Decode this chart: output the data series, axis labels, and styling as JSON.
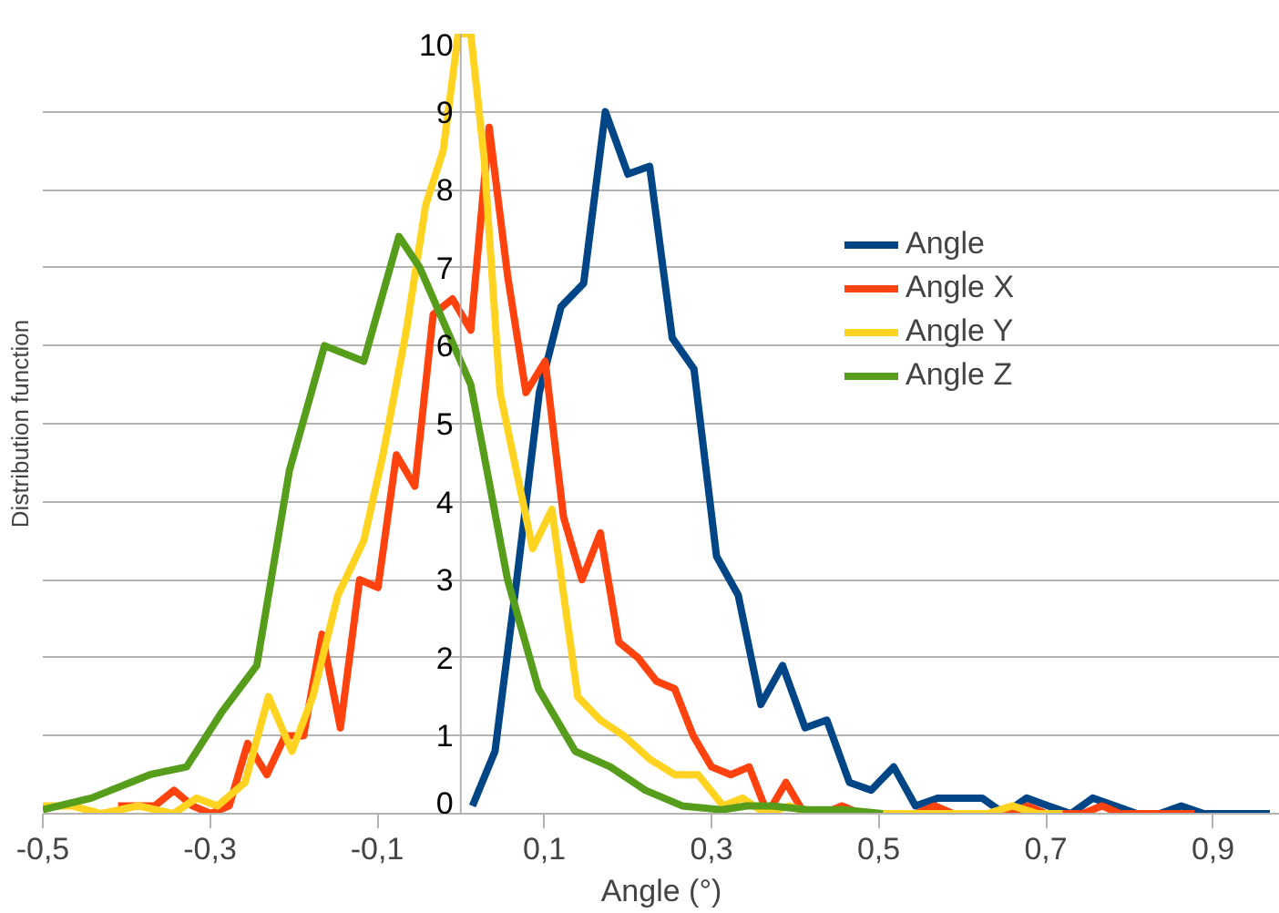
{
  "chart_data": {
    "type": "line",
    "xlabel": "Angle (°)",
    "ylabel": "Distribution function",
    "xlim": [
      -0.5,
      0.98
    ],
    "ylim": [
      0,
      10
    ],
    "xticks": [
      {
        "value": -0.5,
        "label": "-0,5"
      },
      {
        "value": -0.3,
        "label": "-0,3"
      },
      {
        "value": -0.1,
        "label": "-0,1"
      },
      {
        "value": 0.1,
        "label": "0,1"
      },
      {
        "value": 0.3,
        "label": "0,3"
      },
      {
        "value": 0.5,
        "label": "0,5"
      },
      {
        "value": 0.7,
        "label": "0,7"
      },
      {
        "value": 0.9,
        "label": "0,9"
      }
    ],
    "yticks": [
      0,
      1,
      2,
      3,
      4,
      5,
      6,
      7,
      8,
      9,
      10
    ],
    "grid": "y",
    "legend": "top right",
    "marker": "none",
    "line_style": "solid",
    "series": [
      {
        "name": "Angle",
        "color": "#004586",
        "x": [
          0.014,
          0.041,
          0.067,
          0.094,
          0.12,
          0.147,
          0.173,
          0.2,
          0.226,
          0.253,
          0.279,
          0.306,
          0.332,
          0.359,
          0.385,
          0.412,
          0.438,
          0.465,
          0.491,
          0.518,
          0.544,
          0.571,
          0.597,
          0.624,
          0.65,
          0.677,
          0.703,
          0.73,
          0.756,
          0.783,
          0.809,
          0.836,
          0.862,
          0.889,
          0.915,
          0.942,
          0.968
        ],
        "values": [
          0.1,
          0.8,
          3.0,
          5.4,
          6.5,
          6.8,
          9.0,
          8.2,
          8.3,
          6.1,
          5.7,
          3.3,
          2.8,
          1.4,
          1.9,
          1.1,
          1.2,
          0.4,
          0.3,
          0.6,
          0.1,
          0.2,
          0.2,
          0.2,
          0.0,
          0.2,
          0.1,
          0.0,
          0.2,
          0.1,
          0.0,
          0.0,
          0.1,
          0.0,
          0.0,
          0.0,
          0.0
        ]
      },
      {
        "name": "Angle X",
        "color": "#ff420e",
        "x": [
          -0.41,
          -0.388,
          -0.366,
          -0.343,
          -0.321,
          -0.299,
          -0.277,
          -0.255,
          -0.232,
          -0.21,
          -0.188,
          -0.166,
          -0.144,
          -0.121,
          -0.099,
          -0.077,
          -0.055,
          -0.033,
          -0.01,
          0.012,
          0.034,
          0.056,
          0.078,
          0.101,
          0.123,
          0.145,
          0.167,
          0.189,
          0.212,
          0.234,
          0.256,
          0.278,
          0.3,
          0.323,
          0.345,
          0.367,
          0.389,
          0.411,
          0.434,
          0.456,
          0.478,
          0.5,
          0.522,
          0.545,
          0.567,
          0.589,
          0.611,
          0.633,
          0.656,
          0.678,
          0.7,
          0.722,
          0.744,
          0.767,
          0.789,
          0.811,
          0.833,
          0.855,
          0.878
        ],
        "values": [
          0.1,
          0.1,
          0.1,
          0.3,
          0.1,
          0.0,
          0.1,
          0.9,
          0.5,
          1.0,
          1.0,
          2.3,
          1.1,
          3.0,
          2.9,
          4.6,
          4.2,
          6.4,
          6.6,
          6.2,
          8.8,
          6.9,
          5.4,
          5.8,
          3.8,
          3.0,
          3.6,
          2.2,
          2.0,
          1.7,
          1.6,
          1.0,
          0.6,
          0.5,
          0.6,
          0.0,
          0.4,
          0.0,
          0.0,
          0.1,
          0.0,
          0.0,
          0.0,
          0.0,
          0.1,
          0.0,
          0.0,
          0.0,
          0.0,
          0.1,
          0.0,
          0.0,
          0.0,
          0.1,
          0.0,
          0.0,
          0.0,
          0.0,
          0.0
        ]
      },
      {
        "name": "Angle Y",
        "color": "#ffd320",
        "x": [
          -0.5,
          -0.465,
          -0.43,
          -0.386,
          -0.344,
          -0.316,
          -0.291,
          -0.258,
          -0.23,
          -0.202,
          -0.177,
          -0.147,
          -0.116,
          -0.093,
          -0.065,
          -0.042,
          -0.021,
          -0.003,
          0.012,
          0.028,
          0.047,
          0.086,
          0.109,
          0.14,
          0.167,
          0.195,
          0.226,
          0.256,
          0.284,
          0.314,
          0.337,
          0.365,
          0.393,
          0.42,
          0.45,
          0.48,
          0.51,
          0.54,
          0.57,
          0.6,
          0.63,
          0.66,
          0.69,
          0.72
        ],
        "values": [
          0.1,
          0.1,
          0.0,
          0.1,
          0.0,
          0.2,
          0.1,
          0.4,
          1.5,
          0.8,
          1.5,
          2.8,
          3.5,
          4.6,
          6.2,
          7.8,
          8.5,
          10,
          10,
          8.4,
          5.4,
          3.4,
          3.9,
          1.5,
          1.2,
          1.0,
          0.7,
          0.5,
          0.5,
          0.1,
          0.2,
          0.0,
          0.1,
          0.0,
          0.0,
          0.0,
          0.0,
          0.0,
          0.0,
          0.0,
          0.0,
          0.1,
          0.0,
          0.0
        ]
      },
      {
        "name": "Angle Z",
        "color": "#579d1c",
        "x": [
          -0.5,
          -0.442,
          -0.372,
          -0.328,
          -0.286,
          -0.244,
          -0.205,
          -0.163,
          -0.116,
          -0.074,
          -0.049,
          0.012,
          0.056,
          0.093,
          0.137,
          0.179,
          0.221,
          0.265,
          0.312,
          0.342,
          0.372,
          0.416,
          0.458,
          0.505
        ],
        "values": [
          0.05,
          0.2,
          0.5,
          0.6,
          1.3,
          1.9,
          4.4,
          6.0,
          5.8,
          7.4,
          7.0,
          5.5,
          3.0,
          1.6,
          0.8,
          0.6,
          0.3,
          0.1,
          0.05,
          0.1,
          0.1,
          0.05,
          0.05,
          0.0
        ]
      }
    ]
  }
}
